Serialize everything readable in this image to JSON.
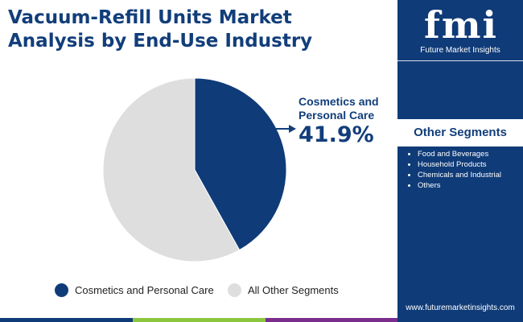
{
  "title": {
    "line1": "Vacuum-Refill Units Market",
    "line2": "Analysis by End-Use Industry"
  },
  "brand": {
    "logo_text": "fmi",
    "tagline": "Future Market Insights",
    "website": "www.futuremarketinsights.com"
  },
  "side_panel": {
    "heading": "Other Segments",
    "items": [
      "Food and Beverages",
      "Household Products",
      "Chemicals and Industrial",
      "Others"
    ]
  },
  "callout": {
    "label_line1": "Cosmetics and",
    "label_line2": "Personal Care",
    "value": "41.9%"
  },
  "chart_data": {
    "type": "pie",
    "categories": [
      "Cosmetics and Personal Care",
      "All Other Segments"
    ],
    "values": [
      41.9,
      58.1
    ],
    "colors": [
      "#0f3b78",
      "#dedede"
    ],
    "legend_position": "bottom"
  },
  "colors": {
    "brand_blue": "#0f3b78",
    "title_blue": "#123e7a",
    "other_grey": "#dedede"
  }
}
